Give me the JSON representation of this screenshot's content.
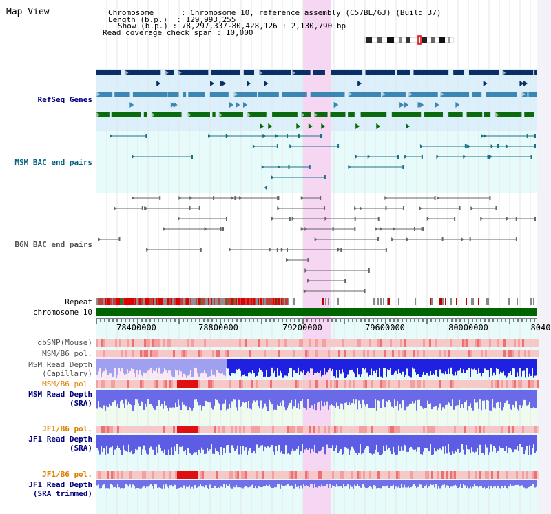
{
  "view": {
    "title": "Map View",
    "chromosome_line": "Chromosome      : Chromosome 10, reference assembly (C57BL/6J) (Build 37)",
    "length_line": "Length (b.p.)  : 129,993,255",
    "show_line": "Show (b.p.) : 78,297,337-80,428,126 : 2,130,790 bp",
    "coverage_line": "Read coverage check span : 10,000"
  },
  "tracks": {
    "refseq": "RefSeq Genes",
    "msm_bac": "MSM BAC end pairs",
    "b6n_bac": "B6N BAC end pairs",
    "repeat": "Repeat",
    "chromosome": "chromosome 10",
    "dbsnp": "dbSNP(Mouse)",
    "msm_b6_pol_1": "MSM/B6 pol.",
    "msm_read_depth_cap_1": "MSM Read Depth",
    "msm_read_depth_cap_2": "(Capillary)",
    "msm_b6_pol_2": "MSM/B6 pol.",
    "msm_read_depth_sra_1": "MSM Read Depth",
    "msm_read_depth_sra_2": "(SRA)",
    "jf1_b6_pol_1": "JF1/B6 pol.",
    "jf1_read_depth_1": "JF1 Read Depth",
    "jf1_read_depth_2": "(SRA)",
    "jf1_b6_pol_2": "JF1/B6 pol.",
    "jf1_read_depth_trim_1": "JF1 Read Depth",
    "jf1_read_depth_trim_2": "(SRA trimmed)"
  },
  "axis": {
    "ticks": [
      "78400000",
      "78800000",
      "79200000",
      "79600000",
      "80000000",
      "8040"
    ]
  },
  "colors": {
    "refseq_label": "#000080",
    "msm_label": "#006080",
    "b6n_label": "#505050",
    "orange_label": "#e08000",
    "navy_label": "#000080",
    "highlight": "#f7d6f4",
    "chromosome_bar": "#006400",
    "gene_dark": "#0a2f66",
    "gene_mid": "#3b86b3",
    "gene_green": "#0b6a0b"
  }
}
